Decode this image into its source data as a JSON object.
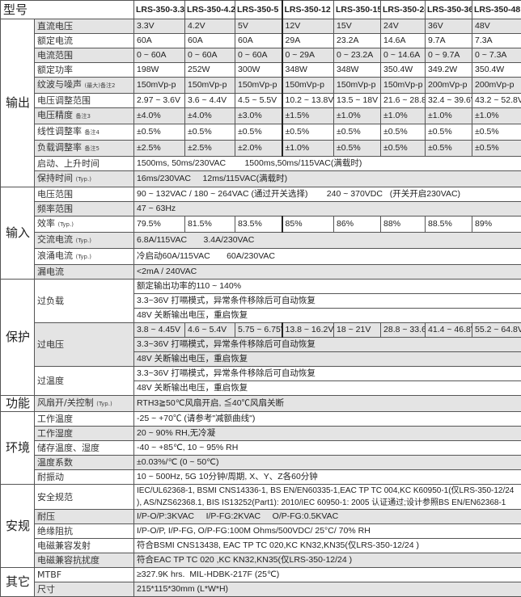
{
  "header": {
    "title": "型号",
    "models": [
      "LRS-350-3.3",
      "LRS-350-4.2",
      "LRS-350-5",
      "LRS-350-12",
      "LRS-350-15",
      "LRS-350-24",
      "LRS-350-36",
      "LRS-350-48"
    ]
  },
  "groups": [
    {
      "name": "输出",
      "rows": [
        {
          "label": "直流电压",
          "shaded": true,
          "lines": [
            [
              "3.3V",
              "4.2V",
              "5V",
              "12V",
              "15V",
              "24V",
              "36V",
              "48V"
            ]
          ]
        },
        {
          "label": "额定电流",
          "shaded": false,
          "lines": [
            [
              "60A",
              "60A",
              "60A",
              "29A",
              "23.2A",
              "14.6A",
              "9.7A",
              "7.3A"
            ]
          ]
        },
        {
          "label": "电流范围",
          "shaded": true,
          "lines": [
            [
              "0 ~ 60A",
              "0 ~ 60A",
              "0 ~ 60A",
              "0 ~ 29A",
              "0 ~ 23.2A",
              "0 ~ 14.6A",
              "0 ~ 9.7A",
              "0 ~ 7.3A"
            ]
          ]
        },
        {
          "label": "额定功率",
          "shaded": false,
          "lines": [
            [
              "198W",
              "252W",
              "300W",
              "348W",
              "348W",
              "350.4W",
              "349.2W",
              "350.4W"
            ]
          ]
        },
        {
          "label": "纹波与噪声",
          "note": "(最大)备注2",
          "shaded": true,
          "lines": [
            [
              "150mVp-p",
              "150mVp-p",
              "150mVp-p",
              "150mVp-p",
              "150mVp-p",
              "150mVp-p",
              "200mVp-p",
              "200mVp-p"
            ]
          ]
        },
        {
          "label": "电压调整范围",
          "shaded": false,
          "lines": [
            [
              "2.97 ~ 3.6V",
              "3.6 ~ 4.4V",
              "4.5 ~ 5.5V",
              "10.2 ~ 13.8V",
              "13.5 ~ 18V",
              "21.6 ~ 28.8V",
              "32.4 ~ 39.6V",
              "43.2 ~ 52.8V"
            ]
          ]
        },
        {
          "label": "电压精度",
          "note": "备注3",
          "shaded": true,
          "lines": [
            [
              "±4.0%",
              "±4.0%",
              "±3.0%",
              "±1.5%",
              "±1.0%",
              "±1.0%",
              "±1.0%",
              "±1.0%"
            ]
          ]
        },
        {
          "label": "线性调整率",
          "note": "备注4",
          "shaded": false,
          "lines": [
            [
              "±0.5%",
              "±0.5%",
              "±0.5%",
              "±0.5%",
              "±0.5%",
              "±0.5%",
              "±0.5%",
              "±0.5%"
            ]
          ]
        },
        {
          "label": "负载调整率",
          "note": "备注5",
          "shaded": true,
          "lines": [
            [
              "±2.5%",
              "±2.5%",
              "±2.0%",
              "±1.0%",
              "±0.5%",
              "±0.5%",
              "±0.5%",
              "±0.5%"
            ]
          ]
        },
        {
          "label": "启动、上升时间",
          "shaded": false,
          "lines": [
            "1500ms, 50ms/230VAC        1500ms,50ms/115VAC(满载时)"
          ]
        },
        {
          "label": "保持时间",
          "note": "(Typ.)",
          "shaded": true,
          "lines": [
            "16ms/230VAC     12ms/115VAC(满载时)"
          ]
        }
      ]
    },
    {
      "name": "输入",
      "rows": [
        {
          "label": "电压范围",
          "shaded": false,
          "lines": [
            "90 ~ 132VAC / 180 ~ 264VAC (通过开关选择)        240 ~ 370VDC   (开关开启230VAC)"
          ]
        },
        {
          "label": "频率范围",
          "shaded": true,
          "lines": [
            "47 ~ 63Hz"
          ]
        },
        {
          "label": "效率",
          "note": "(Typ.)",
          "shaded": false,
          "lines": [
            [
              "79.5%",
              "81.5%",
              "83.5%",
              "85%",
              "86%",
              "88%",
              "88.5%",
              "89%"
            ]
          ]
        },
        {
          "label": "交流电流",
          "note": "(Typ.)",
          "shaded": true,
          "lines": [
            "6.8A/115VAC       3.4A/230VAC"
          ]
        },
        {
          "label": "浪涌电流",
          "note": "(Typ.)",
          "shaded": false,
          "lines": [
            "冷启动60A/115VAC       60A/230VAC"
          ]
        },
        {
          "label": "漏电流",
          "shaded": true,
          "lines": [
            "<2mA / 240VAC"
          ]
        }
      ]
    },
    {
      "name": "保护",
      "rows": [
        {
          "label": "过负载",
          "shaded": false,
          "lines": [
            "额定输出功率的110 ~ 140%",
            "3.3~36V 打嗝模式，异常条件移除后可自动恢复",
            "48V 关断输出电压，重启恢复"
          ]
        },
        {
          "label": "过电压",
          "shaded": true,
          "lines": [
            [
              "3.8 ~ 4.45V",
              "4.6 ~ 5.4V",
              "5.75 ~ 6.75V",
              "13.8 ~ 16.2V",
              "18 ~ 21V",
              "28.8 ~ 33.6V",
              "41.4 ~ 46.8V",
              "55.2 ~ 64.8V"
            ],
            "3.3~36V 打嗝模式，异常条件移除后可自动恢复",
            "48V 关断输出电压，重启恢复"
          ]
        },
        {
          "label": "过温度",
          "shaded": false,
          "lines": [
            "3.3~36V 打嗝模式，异常条件移除后可自动恢复",
            "48V 关断输出电压，重启恢复"
          ]
        }
      ]
    },
    {
      "name": "功能",
      "rows": [
        {
          "label": "风扇开/关控制",
          "note": "(Typ.)",
          "shaded": true,
          "lines": [
            "RTH3≧50℃风扇开启, ≦40℃风扇关断"
          ]
        }
      ]
    },
    {
      "name": "环境",
      "rows": [
        {
          "label": "工作温度",
          "shaded": false,
          "lines": [
            "-25 ~ +70℃ (请参考\"减额曲线\")"
          ]
        },
        {
          "label": "工作湿度",
          "shaded": true,
          "lines": [
            "20 ~ 90% RH,无冷凝"
          ]
        },
        {
          "label": "储存温度、湿度",
          "shaded": false,
          "lines": [
            "-40 ~ +85℃, 10 ~ 95% RH"
          ]
        },
        {
          "label": "温度系数",
          "shaded": true,
          "lines": [
            "±0.03%/℃ (0 ~ 50℃)"
          ]
        },
        {
          "label": "耐振动",
          "shaded": false,
          "lines": [
            "10 ~ 500Hz, 5G 10分钟/周期, X、Y、Z各60分钟"
          ]
        }
      ]
    },
    {
      "name": "安规",
      "rows": [
        {
          "label": "安全规范",
          "shaded": false,
          "multiline": true,
          "lines": [
            "IEC/UL62368-1, BSMI CNS14336-1, BS EN/EN60335-1,EAC TP TC 004,KC K60950-1(仅LRS-350-12/24 ), AS/NZS62368.1, BIS IS13252(Part1): 2010/IEC 60950-1: 2005 认证通过;设计参照BS EN/EN62368-1"
          ]
        },
        {
          "label": "耐压",
          "shaded": true,
          "lines": [
            "I/P-O/P:3KVAC     I/P-FG:2KVAC     O/P-FG:0.5KVAC"
          ]
        },
        {
          "label": "绝缘阻抗",
          "shaded": false,
          "lines": [
            "I/P-O/P, I/P-FG, O/P-FG:100M Ohms/500VDC/ 25°C/ 70% RH"
          ]
        },
        {
          "label": "电磁兼容发射",
          "shaded": false,
          "lines": [
            "符合BSMI CNS13438, EAC TP TC 020,KC KN32,KN35(仅LRS-350-12/24 )"
          ]
        },
        {
          "label": "电磁兼容抗扰度",
          "shaded": true,
          "lines": [
            "符合EAC TP TC 020 ,KC KN32,KN35(仅LRS-350-12/24 )"
          ]
        }
      ]
    },
    {
      "name": "其它",
      "rows": [
        {
          "label": "MTBF",
          "shaded": false,
          "lines": [
            "≥327.9K hrs.  MIL-HDBK-217F (25℃)"
          ]
        },
        {
          "label": "尺寸",
          "shaded": true,
          "lines": [
            "215*115*30mm (L*W*H)"
          ]
        }
      ]
    }
  ]
}
